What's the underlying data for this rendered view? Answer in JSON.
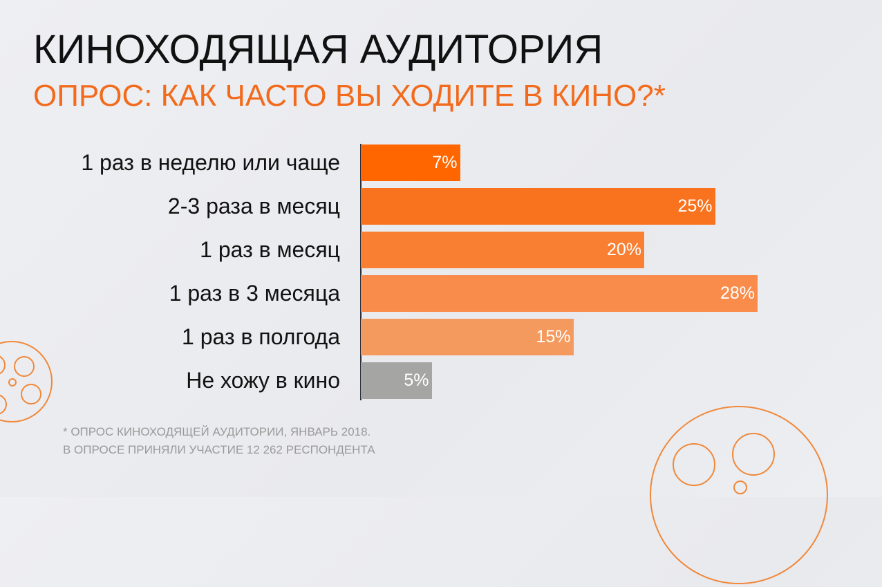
{
  "header": {
    "title": "КИНОХОДЯЩАЯ АУДИТОРИЯ",
    "subtitle": "ОПРОС: КАК ЧАСТО ВЫ ХОДИТЕ В КИНО?*"
  },
  "chart_data": {
    "type": "bar",
    "orientation": "horizontal",
    "title": "ОПРОС: КАК ЧАСТО ВЫ ХОДИТЕ В КИНО?*",
    "categories": [
      "1 раз в неделю или чаще",
      "2-3 раза в месяц",
      "1 раз в месяц",
      "1 раз в 3 месяца",
      "1 раз в полгода",
      "Не хожу в кино"
    ],
    "values": [
      7,
      25,
      20,
      28,
      15,
      5
    ],
    "value_labels": [
      "7%",
      "25%",
      "20%",
      "28%",
      "15%",
      "5%"
    ],
    "unit": "%",
    "colors": [
      "#ff6600",
      "#f9721e",
      "#f97f33",
      "#f98c4b",
      "#f59a5f",
      "#a5a5a3"
    ],
    "xlim": [
      0,
      30
    ],
    "grid": false
  },
  "footnote": {
    "line1": "* ОПРОС КИНОХОДЯЩЕЙ АУДИТОРИИ, ЯНВАРЬ 2018.",
    "line2": "В ОПРОСЕ ПРИНЯЛИ УЧАСТИЕ 12 262 РЕСПОНДЕНТА"
  },
  "decor": {
    "accent": "#f26b1d"
  }
}
